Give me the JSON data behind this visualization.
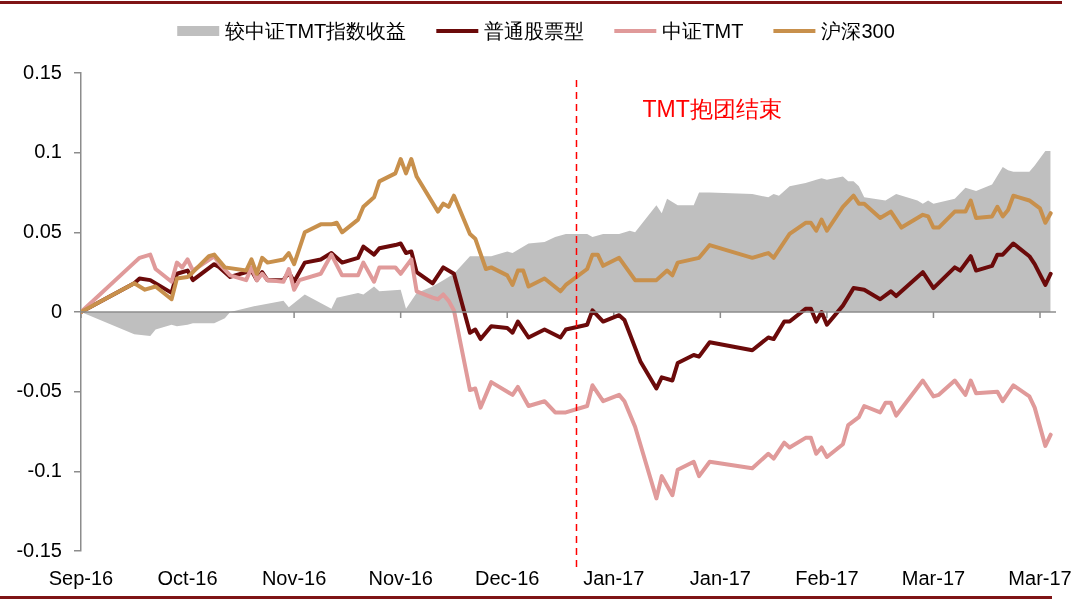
{
  "chart_data": {
    "type": "line",
    "legend": "top",
    "grid": false,
    "marker": "none",
    "xlim": [
      "2016-09-30",
      "2017-04-01"
    ],
    "xticks": [
      {
        "value": "2016-09-30",
        "label": "Sep-16"
      },
      {
        "value": "2016-10-20",
        "label": "Oct-16"
      },
      {
        "value": "2016-11-09",
        "label": "Nov-16"
      },
      {
        "value": "2016-11-29",
        "label": "Nov-16"
      },
      {
        "value": "2016-12-19",
        "label": "Dec-16"
      },
      {
        "value": "2017-01-08",
        "label": "Jan-17"
      },
      {
        "value": "2017-01-28",
        "label": "Jan-17"
      },
      {
        "value": "2017-02-17",
        "label": "Feb-17"
      },
      {
        "value": "2017-03-09",
        "label": "Mar-17"
      },
      {
        "value": "2017-03-29",
        "label": "Mar-17"
      }
    ],
    "ylim": [
      -0.15,
      0.15
    ],
    "yticks": [
      -0.15,
      -0.1,
      -0.05,
      0,
      0.05,
      0.1,
      0.15
    ],
    "ref_lines": [
      {
        "axis": "y",
        "value": 0,
        "color": "#8c8c8c",
        "line_style": "solid"
      },
      {
        "axis": "x",
        "value": "2017-01-01",
        "label": "TMT抱团结束",
        "color": "#ff0000",
        "line_style": "dashed"
      }
    ],
    "series": [
      {
        "name": "较中证TMT指数收益",
        "type": "area",
        "color": "#bfbfbf",
        "x": [
          "2016-09-30",
          "2016-10-10",
          "2016-10-13",
          "2016-10-14",
          "2016-10-17",
          "2016-10-18",
          "2016-10-20",
          "2016-10-21",
          "2016-10-25",
          "2016-10-27",
          "2016-10-28",
          "2016-11-02",
          "2016-11-07",
          "2016-11-08",
          "2016-11-11",
          "2016-11-16",
          "2016-11-17",
          "2016-11-21",
          "2016-11-22",
          "2016-11-24",
          "2016-11-25",
          "2016-11-29",
          "2016-11-30",
          "2016-12-02",
          "2016-12-05",
          "2016-12-07",
          "2016-12-09",
          "2016-12-12",
          "2016-12-16",
          "2016-12-19",
          "2016-12-20",
          "2016-12-23",
          "2016-12-26",
          "2016-12-28",
          "2016-12-30",
          "2017-01-03",
          "2017-01-04",
          "2017-01-06",
          "2017-01-09",
          "2017-01-11",
          "2017-01-12",
          "2017-01-16",
          "2017-01-17",
          "2017-01-18",
          "2017-01-20",
          "2017-01-23",
          "2017-01-24",
          "2017-01-26",
          "2017-02-03",
          "2017-02-06",
          "2017-02-07",
          "2017-02-08",
          "2017-02-10",
          "2017-02-13",
          "2017-02-15",
          "2017-02-16",
          "2017-02-17",
          "2017-02-20",
          "2017-02-21",
          "2017-02-22",
          "2017-02-23",
          "2017-02-24",
          "2017-02-28",
          "2017-03-02",
          "2017-03-06",
          "2017-03-07",
          "2017-03-08",
          "2017-03-09",
          "2017-03-13",
          "2017-03-15",
          "2017-03-17",
          "2017-03-20",
          "2017-03-22",
          "2017-03-23",
          "2017-03-24",
          "2017-03-27",
          "2017-03-28",
          "2017-03-30",
          "2017-03-31"
        ],
        "values": [
          0,
          -0.014,
          -0.015,
          -0.011,
          -0.008,
          -0.009,
          -0.008,
          -0.007,
          -0.007,
          -0.004,
          0,
          0.004,
          0.007,
          0.003,
          0.011,
          0.002,
          0.009,
          0.012,
          0.011,
          0.016,
          0.013,
          0.014,
          0.002,
          0.012,
          0.016,
          0.02,
          0.024,
          0.035,
          0.035,
          0.038,
          0.037,
          0.043,
          0.044,
          0.047,
          0.049,
          0.049,
          0.047,
          0.049,
          0.049,
          0.051,
          0.05,
          0.067,
          0.062,
          0.071,
          0.067,
          0.067,
          0.075,
          0.075,
          0.074,
          0.072,
          0.074,
          0.073,
          0.079,
          0.081,
          0.083,
          0.084,
          0.083,
          0.085,
          0.082,
          0.082,
          0.079,
          0.072,
          0.07,
          0.074,
          0.07,
          0.068,
          0.07,
          0.068,
          0.071,
          0.078,
          0.076,
          0.08,
          0.091,
          0.089,
          0.088,
          0.088,
          0.092,
          0.101,
          0.101
        ]
      },
      {
        "name": "普通股票型",
        "type": "line",
        "color": "#6b0a0a",
        "x": [
          "2016-09-30",
          "2016-10-10",
          "2016-10-11",
          "2016-10-13",
          "2016-10-17",
          "2016-10-18",
          "2016-10-20",
          "2016-10-21",
          "2016-10-25",
          "2016-10-26",
          "2016-10-28",
          "2016-11-01",
          "2016-11-02",
          "2016-11-03",
          "2016-11-04",
          "2016-11-07",
          "2016-11-08",
          "2016-11-09",
          "2016-11-11",
          "2016-11-14",
          "2016-11-16",
          "2016-11-18",
          "2016-11-21",
          "2016-11-22",
          "2016-11-24",
          "2016-11-25",
          "2016-11-28",
          "2016-11-29",
          "2016-11-30",
          "2016-12-01",
          "2016-12-02",
          "2016-12-05",
          "2016-12-07",
          "2016-12-09",
          "2016-12-12",
          "2016-12-13",
          "2016-12-14",
          "2016-12-16",
          "2016-12-19",
          "2016-12-20",
          "2016-12-21",
          "2016-12-23",
          "2016-12-26",
          "2016-12-29",
          "2016-12-30",
          "2017-01-03",
          "2017-01-04",
          "2017-01-06",
          "2017-01-09",
          "2017-01-10",
          "2017-01-13",
          "2017-01-16",
          "2017-01-17",
          "2017-01-19",
          "2017-01-20",
          "2017-01-23",
          "2017-01-24",
          "2017-01-26",
          "2017-02-03",
          "2017-02-06",
          "2017-02-07",
          "2017-02-09",
          "2017-02-10",
          "2017-02-13",
          "2017-02-14",
          "2017-02-15",
          "2017-02-16",
          "2017-02-17",
          "2017-02-20",
          "2017-02-22",
          "2017-02-24",
          "2017-02-27",
          "2017-03-01",
          "2017-03-02",
          "2017-03-07",
          "2017-03-09",
          "2017-03-13",
          "2017-03-14",
          "2017-03-16",
          "2017-03-17",
          "2017-03-20",
          "2017-03-21",
          "2017-03-22",
          "2017-03-24",
          "2017-03-27",
          "2017-03-28",
          "2017-03-30",
          "2017-03-31"
        ],
        "values": [
          0,
          0.018,
          0.021,
          0.02,
          0.012,
          0.024,
          0.026,
          0.02,
          0.03,
          0.028,
          0.022,
          0.026,
          0.02,
          0.025,
          0.02,
          0.02,
          0.025,
          0.019,
          0.031,
          0.033,
          0.037,
          0.031,
          0.034,
          0.041,
          0.036,
          0.04,
          0.042,
          0.043,
          0.037,
          0.038,
          0.025,
          0.018,
          0.028,
          0.024,
          -0.013,
          -0.011,
          -0.017,
          -0.009,
          -0.01,
          -0.013,
          -0.006,
          -0.016,
          -0.011,
          -0.016,
          -0.011,
          -0.008,
          0.001,
          -0.006,
          -0.002,
          -0.005,
          -0.031,
          -0.048,
          -0.041,
          -0.043,
          -0.032,
          -0.027,
          -0.028,
          -0.019,
          -0.024,
          -0.016,
          -0.017,
          -0.006,
          -0.006,
          0.002,
          0.002,
          -0.006,
          0,
          -0.008,
          0.004,
          0.015,
          0.014,
          0.008,
          0.013,
          0.01,
          0.025,
          0.015,
          0.028,
          0.026,
          0.035,
          0.026,
          0.029,
          0.036,
          0.036,
          0.043,
          0.035,
          0.03,
          0.017,
          0.024
        ]
      },
      {
        "name": "中证TMT",
        "type": "line",
        "color": "#e09a9a",
        "x": [
          "2016-09-30",
          "2016-10-10",
          "2016-10-11",
          "2016-10-13",
          "2016-10-14",
          "2016-10-17",
          "2016-10-18",
          "2016-10-19",
          "2016-10-20",
          "2016-10-21",
          "2016-10-25",
          "2016-10-26",
          "2016-10-28",
          "2016-10-31",
          "2016-11-01",
          "2016-11-02",
          "2016-11-03",
          "2016-11-04",
          "2016-11-07",
          "2016-11-08",
          "2016-11-09",
          "2016-11-10",
          "2016-11-14",
          "2016-11-16",
          "2016-11-18",
          "2016-11-21",
          "2016-11-22",
          "2016-11-24",
          "2016-11-25",
          "2016-11-28",
          "2016-11-29",
          "2016-12-01",
          "2016-12-02",
          "2016-12-05",
          "2016-12-06",
          "2016-12-07",
          "2016-12-08",
          "2016-12-09",
          "2016-12-12",
          "2016-12-13",
          "2016-12-14",
          "2016-12-16",
          "2016-12-20",
          "2016-12-21",
          "2016-12-23",
          "2016-12-26",
          "2016-12-28",
          "2016-12-30",
          "2017-01-03",
          "2017-01-04",
          "2017-01-06",
          "2017-01-09",
          "2017-01-10",
          "2017-01-12",
          "2017-01-16",
          "2017-01-17",
          "2017-01-19",
          "2017-01-20",
          "2017-01-23",
          "2017-01-24",
          "2017-01-26",
          "2017-02-03",
          "2017-02-06",
          "2017-02-07",
          "2017-02-09",
          "2017-02-10",
          "2017-02-13",
          "2017-02-14",
          "2017-02-15",
          "2017-02-16",
          "2017-02-17",
          "2017-02-20",
          "2017-02-21",
          "2017-02-23",
          "2017-02-24",
          "2017-02-27",
          "2017-02-28",
          "2017-03-01",
          "2017-03-02",
          "2017-03-07",
          "2017-03-09",
          "2017-03-10",
          "2017-03-13",
          "2017-03-15",
          "2017-03-16",
          "2017-03-17",
          "2017-03-21",
          "2017-03-22",
          "2017-03-24",
          "2017-03-27",
          "2017-03-28",
          "2017-03-30",
          "2017-03-31"
        ],
        "values": [
          0,
          0.031,
          0.034,
          0.036,
          0.027,
          0.019,
          0.031,
          0.028,
          0.033,
          0.026,
          0.035,
          0.03,
          0.023,
          0.02,
          0.028,
          0.02,
          0.024,
          0.02,
          0.019,
          0.027,
          0.014,
          0.02,
          0.024,
          0.036,
          0.023,
          0.023,
          0.031,
          0.019,
          0.028,
          0.028,
          0.024,
          0.033,
          0.013,
          0.009,
          0.008,
          0.011,
          0.007,
          0.001,
          -0.049,
          -0.048,
          -0.06,
          -0.044,
          -0.052,
          -0.047,
          -0.059,
          -0.056,
          -0.063,
          -0.063,
          -0.059,
          -0.046,
          -0.056,
          -0.052,
          -0.056,
          -0.072,
          -0.117,
          -0.103,
          -0.115,
          -0.099,
          -0.094,
          -0.103,
          -0.094,
          -0.098,
          -0.089,
          -0.092,
          -0.082,
          -0.085,
          -0.079,
          -0.079,
          -0.089,
          -0.085,
          -0.091,
          -0.083,
          -0.071,
          -0.066,
          -0.059,
          -0.063,
          -0.057,
          -0.057,
          -0.065,
          -0.043,
          -0.053,
          -0.052,
          -0.043,
          -0.052,
          -0.043,
          -0.051,
          -0.05,
          -0.056,
          -0.046,
          -0.053,
          -0.06,
          -0.084,
          -0.077
        ]
      },
      {
        "name": "沪深300",
        "type": "line",
        "color": "#c8904c",
        "x": [
          "2016-09-30",
          "2016-10-10",
          "2016-10-12",
          "2016-10-14",
          "2016-10-17",
          "2016-10-18",
          "2016-10-20",
          "2016-10-21",
          "2016-10-24",
          "2016-10-25",
          "2016-10-27",
          "2016-10-31",
          "2016-11-01",
          "2016-11-02",
          "2016-11-03",
          "2016-11-04",
          "2016-11-07",
          "2016-11-08",
          "2016-11-09",
          "2016-11-11",
          "2016-11-14",
          "2016-11-16",
          "2016-11-17",
          "2016-11-18",
          "2016-11-21",
          "2016-11-22",
          "2016-11-24",
          "2016-11-25",
          "2016-11-28",
          "2016-11-29",
          "2016-11-30",
          "2016-12-01",
          "2016-12-02",
          "2016-12-06",
          "2016-12-07",
          "2016-12-08",
          "2016-12-09",
          "2016-12-12",
          "2016-12-13",
          "2016-12-15",
          "2016-12-16",
          "2016-12-19",
          "2016-12-20",
          "2016-12-21",
          "2016-12-22",
          "2016-12-23",
          "2016-12-26",
          "2016-12-29",
          "2016-12-30",
          "2017-01-03",
          "2017-01-04",
          "2017-01-05",
          "2017-01-06",
          "2017-01-09",
          "2017-01-12",
          "2017-01-16",
          "2017-01-18",
          "2017-01-19",
          "2017-01-20",
          "2017-01-24",
          "2017-01-26",
          "2017-02-03",
          "2017-02-06",
          "2017-02-07",
          "2017-02-10",
          "2017-02-13",
          "2017-02-14",
          "2017-02-15",
          "2017-02-16",
          "2017-02-17",
          "2017-02-20",
          "2017-02-22",
          "2017-02-23",
          "2017-02-24",
          "2017-02-27",
          "2017-03-01",
          "2017-03-03",
          "2017-03-07",
          "2017-03-08",
          "2017-03-09",
          "2017-03-10",
          "2017-03-13",
          "2017-03-15",
          "2017-03-16",
          "2017-03-17",
          "2017-03-20",
          "2017-03-21",
          "2017-03-22",
          "2017-03-23",
          "2017-03-24",
          "2017-03-27",
          "2017-03-29",
          "2017-03-30",
          "2017-03-31"
        ],
        "values": [
          0,
          0.018,
          0.014,
          0.016,
          0.008,
          0.021,
          0.022,
          0.025,
          0.035,
          0.036,
          0.028,
          0.026,
          0.033,
          0.024,
          0.034,
          0.031,
          0.033,
          0.037,
          0.03,
          0.05,
          0.055,
          0.055,
          0.056,
          0.05,
          0.058,
          0.066,
          0.072,
          0.082,
          0.087,
          0.096,
          0.087,
          0.096,
          0.085,
          0.063,
          0.068,
          0.066,
          0.073,
          0.049,
          0.046,
          0.027,
          0.028,
          0.023,
          0.017,
          0.026,
          0.026,
          0.016,
          0.021,
          0.013,
          0.017,
          0.027,
          0.036,
          0.036,
          0.029,
          0.034,
          0.02,
          0.02,
          0.026,
          0.023,
          0.031,
          0.034,
          0.042,
          0.034,
          0.037,
          0.034,
          0.049,
          0.056,
          0.056,
          0.051,
          0.058,
          0.051,
          0.066,
          0.073,
          0.068,
          0.068,
          0.059,
          0.063,
          0.053,
          0.061,
          0.06,
          0.053,
          0.053,
          0.063,
          0.063,
          0.07,
          0.059,
          0.06,
          0.066,
          0.06,
          0.064,
          0.073,
          0.07,
          0.065,
          0.056,
          0.062
        ]
      }
    ]
  }
}
